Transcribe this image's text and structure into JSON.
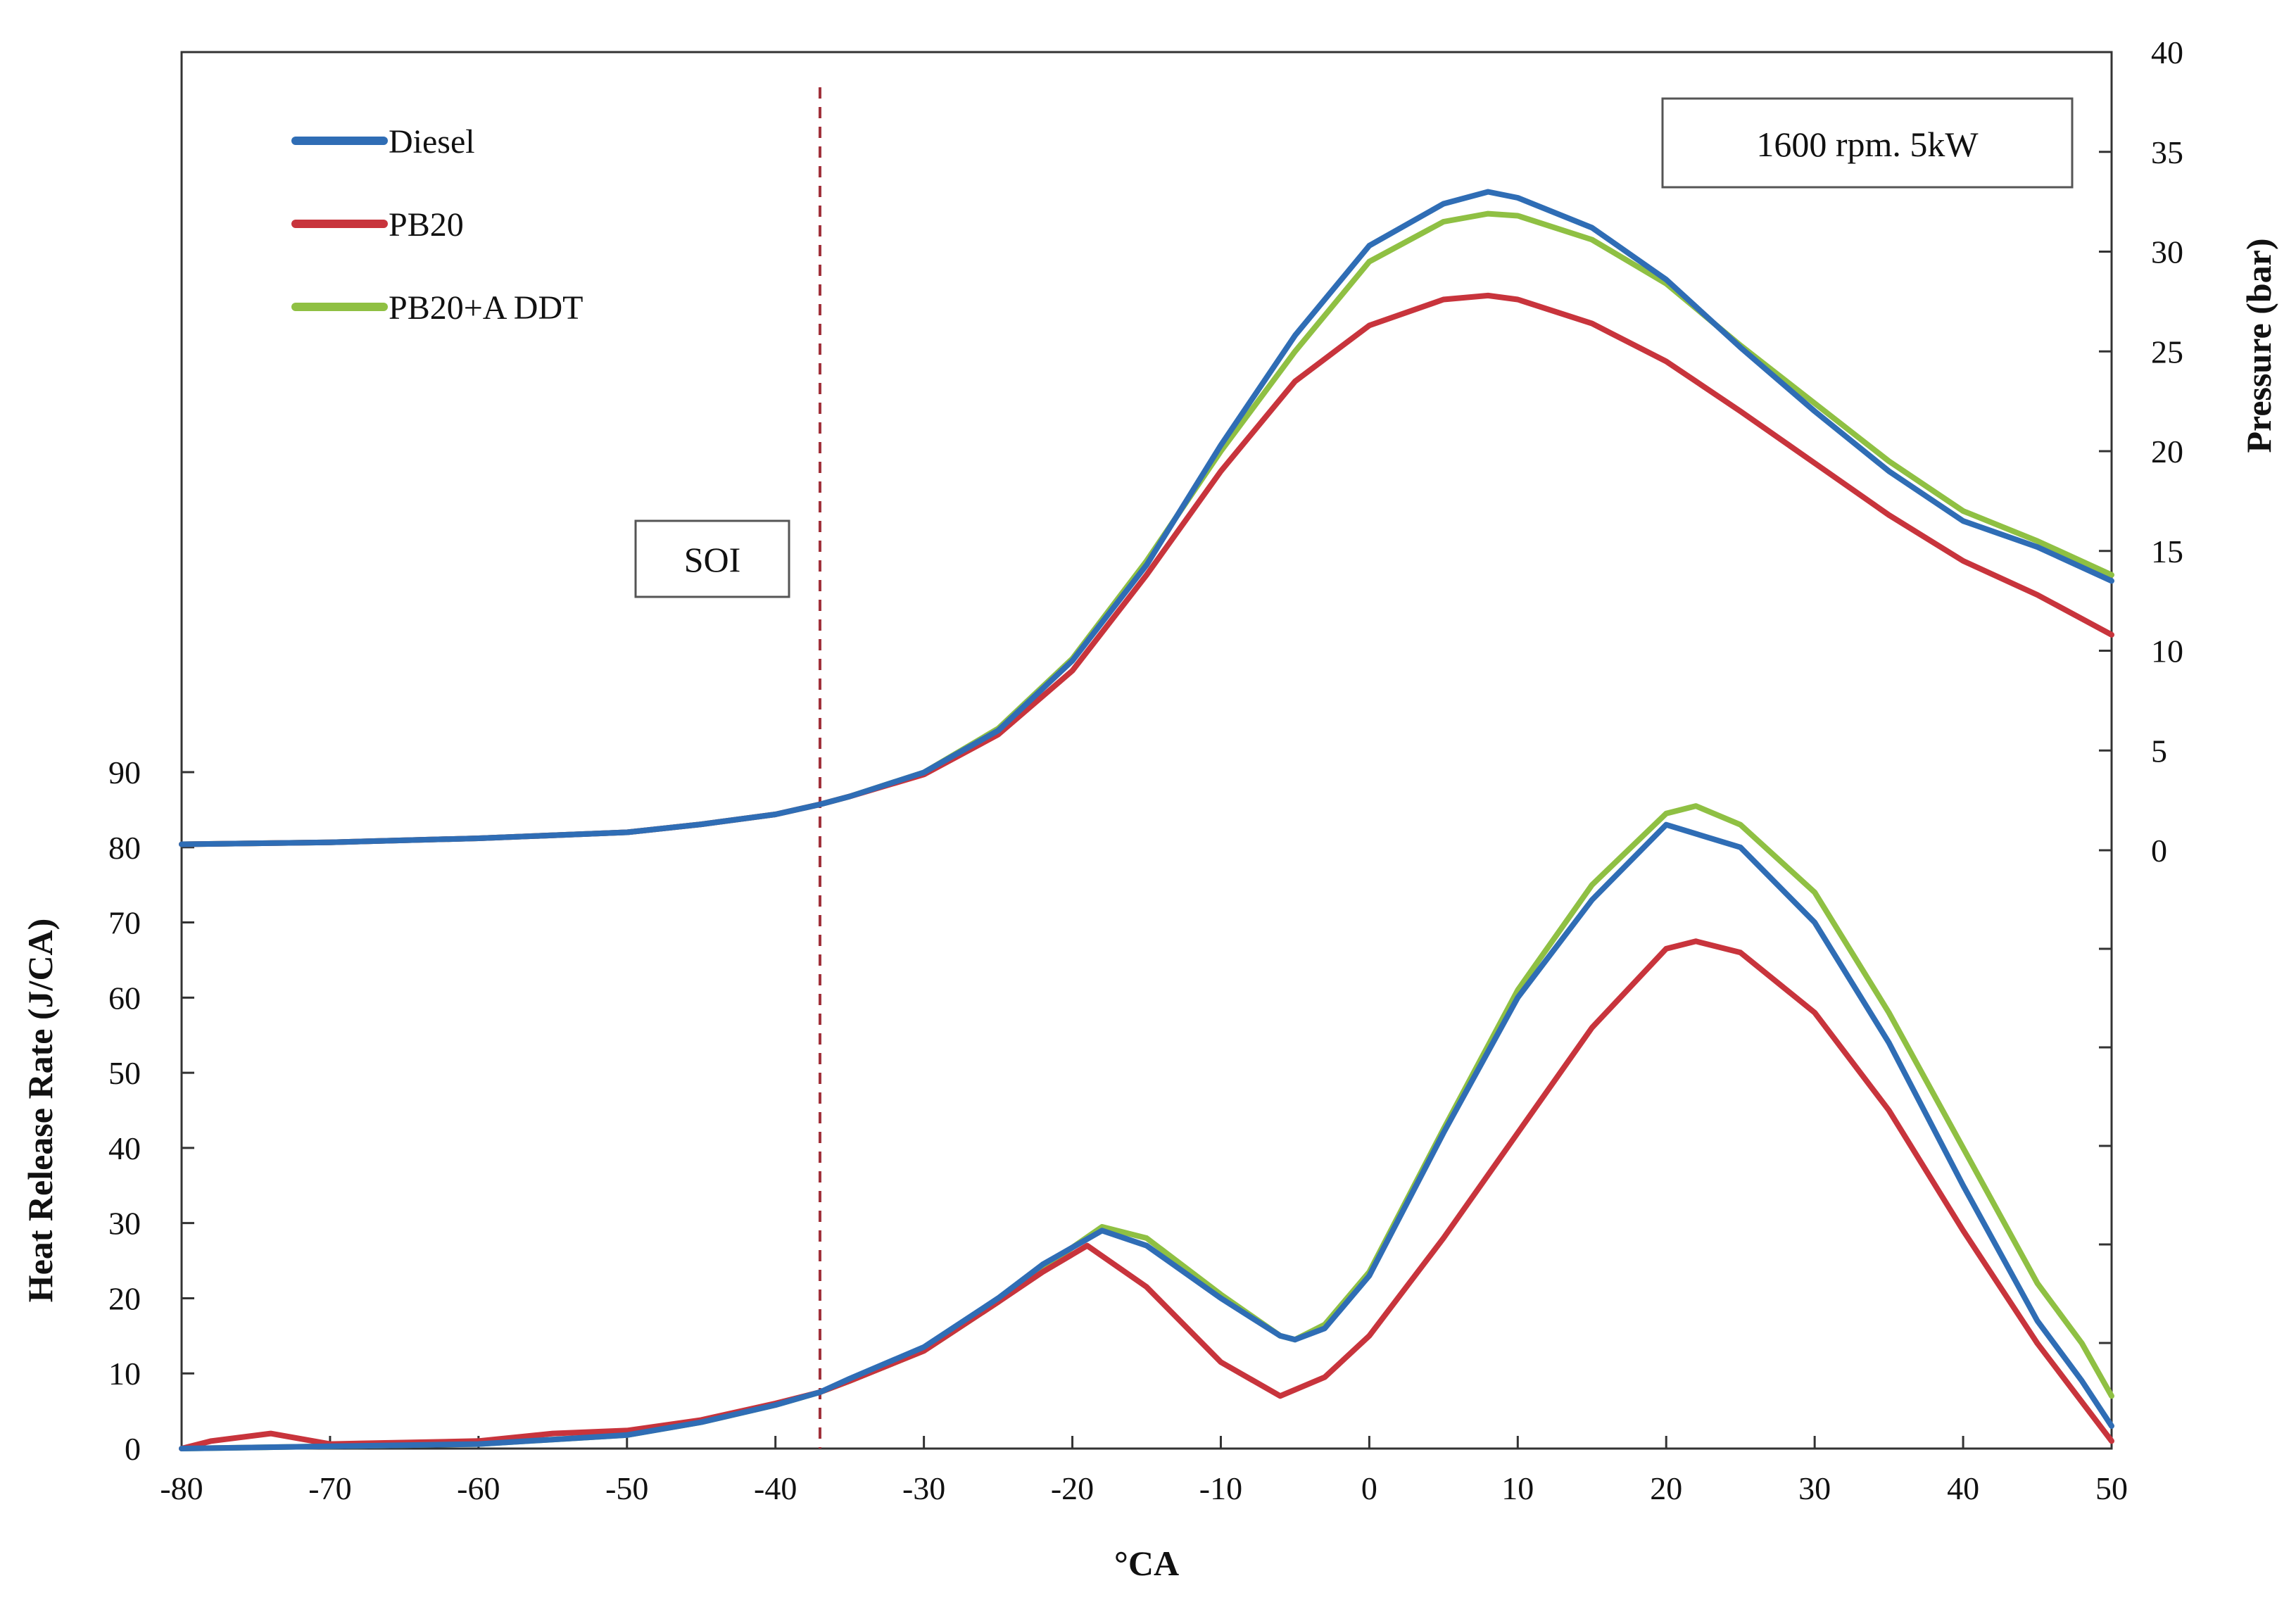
{
  "chart_data": {
    "type": "line",
    "xlabel": "°CA",
    "ylabel_left": "Heat Release Rate  (J/CA)",
    "ylabel_right": "Pressure (bar)",
    "xlim": [
      -80,
      50
    ],
    "x_ticks": [
      -80,
      -70,
      -60,
      -50,
      -40,
      -30,
      -20,
      -10,
      0,
      10,
      20,
      30,
      40,
      50
    ],
    "ylim_left": [
      0,
      90
    ],
    "y_ticks_left": [
      0,
      10,
      20,
      30,
      40,
      50,
      60,
      70,
      80,
      90
    ],
    "ylim_right": [
      0,
      40
    ],
    "y_ticks_right": [
      0,
      5,
      10,
      15,
      20,
      25,
      30,
      35,
      40
    ],
    "grid": false,
    "legend_position": "top-left",
    "colors": {
      "Diesel": "#2f6db5",
      "PB20": "#c8343c",
      "PB20+A DDT": "#8fc043",
      "soi_line": "#a0303a"
    },
    "annotations": {
      "condition": "1600 rpm. 5kW",
      "soi_label": "SOI",
      "soi_x": -37
    },
    "series": [
      {
        "name": "Diesel",
        "pressure": {
          "x": [
            -80,
            -70,
            -60,
            -50,
            -45,
            -40,
            -37,
            -35,
            -30,
            -25,
            -20,
            -15,
            -10,
            -5,
            0,
            5,
            8,
            10,
            15,
            20,
            25,
            30,
            35,
            40,
            45,
            50
          ],
          "y": [
            0.3,
            0.4,
            0.6,
            0.9,
            1.3,
            1.8,
            2.3,
            2.7,
            3.9,
            6.0,
            9.5,
            14.3,
            20.3,
            25.8,
            30.3,
            32.4,
            33.0,
            32.7,
            31.2,
            28.6,
            25.2,
            22.0,
            19.0,
            16.5,
            15.2,
            13.5
          ]
        },
        "hrr": {
          "x": [
            -80,
            -70,
            -60,
            -50,
            -45,
            -40,
            -37,
            -35,
            -30,
            -25,
            -22,
            -18,
            -15,
            -10,
            -6,
            -5,
            -3,
            0,
            5,
            10,
            15,
            20,
            25,
            30,
            35,
            40,
            45,
            48,
            50
          ],
          "y": [
            0,
            0.3,
            0.6,
            1.8,
            3.5,
            5.8,
            7.5,
            9.3,
            13.5,
            20.0,
            24.5,
            29.0,
            27.0,
            20.0,
            15.0,
            14.5,
            16.0,
            23.0,
            42.0,
            60.0,
            73.0,
            83.0,
            80.0,
            70.0,
            54.0,
            35.0,
            17.0,
            9.0,
            3.0
          ]
        }
      },
      {
        "name": "PB20",
        "pressure": {
          "x": [
            -80,
            -70,
            -60,
            -50,
            -45,
            -40,
            -37,
            -35,
            -30,
            -25,
            -20,
            -15,
            -10,
            -5,
            0,
            5,
            8,
            10,
            15,
            20,
            25,
            30,
            35,
            40,
            45,
            50
          ],
          "y": [
            0.3,
            0.4,
            0.6,
            0.9,
            1.3,
            1.8,
            2.3,
            2.7,
            3.8,
            5.8,
            9.0,
            13.8,
            19.0,
            23.5,
            26.3,
            27.6,
            27.8,
            27.6,
            26.4,
            24.5,
            22.0,
            19.4,
            16.8,
            14.5,
            12.8,
            10.8
          ]
        },
        "hrr": {
          "x": [
            -80,
            -78,
            -74,
            -70,
            -60,
            -55,
            -50,
            -45,
            -40,
            -37,
            -35,
            -30,
            -25,
            -22,
            -19,
            -15,
            -10,
            -6,
            -3,
            0,
            5,
            10,
            15,
            20,
            22,
            25,
            30,
            35,
            40,
            45,
            50
          ],
          "y": [
            0,
            1.0,
            2.0,
            0.6,
            1.0,
            2.0,
            2.4,
            3.8,
            6.0,
            7.5,
            9.0,
            13.0,
            19.5,
            23.5,
            27.0,
            21.5,
            11.5,
            7.0,
            9.5,
            15.0,
            28.0,
            42.0,
            56.0,
            66.5,
            67.5,
            66.0,
            58.0,
            45.0,
            29.0,
            14.0,
            1.0
          ]
        }
      },
      {
        "name": "PB20+A DDT",
        "pressure": {
          "x": [
            -80,
            -70,
            -60,
            -50,
            -45,
            -40,
            -37,
            -35,
            -30,
            -25,
            -20,
            -15,
            -10,
            -5,
            0,
            5,
            8,
            10,
            15,
            20,
            25,
            30,
            35,
            40,
            45,
            50
          ],
          "y": [
            0.3,
            0.4,
            0.6,
            0.9,
            1.3,
            1.8,
            2.3,
            2.7,
            3.9,
            6.1,
            9.6,
            14.5,
            20.0,
            25.0,
            29.5,
            31.5,
            31.9,
            31.8,
            30.6,
            28.4,
            25.3,
            22.4,
            19.5,
            17.0,
            15.5,
            13.8
          ]
        },
        "hrr": {
          "x": [
            -80,
            -70,
            -60,
            -50,
            -45,
            -40,
            -37,
            -35,
            -30,
            -25,
            -22,
            -18,
            -15,
            -10,
            -6,
            -5,
            -3,
            0,
            5,
            10,
            15,
            20,
            22,
            25,
            30,
            35,
            40,
            45,
            48,
            50
          ],
          "y": [
            0,
            0.3,
            0.6,
            1.8,
            3.5,
            5.8,
            7.5,
            9.0,
            13.0,
            19.5,
            24.0,
            29.5,
            28.0,
            20.5,
            15.0,
            14.5,
            16.5,
            23.5,
            42.5,
            61.0,
            75.0,
            84.5,
            85.5,
            83.0,
            74.0,
            58.0,
            40.0,
            22.0,
            14.0,
            7.0
          ]
        }
      }
    ]
  }
}
